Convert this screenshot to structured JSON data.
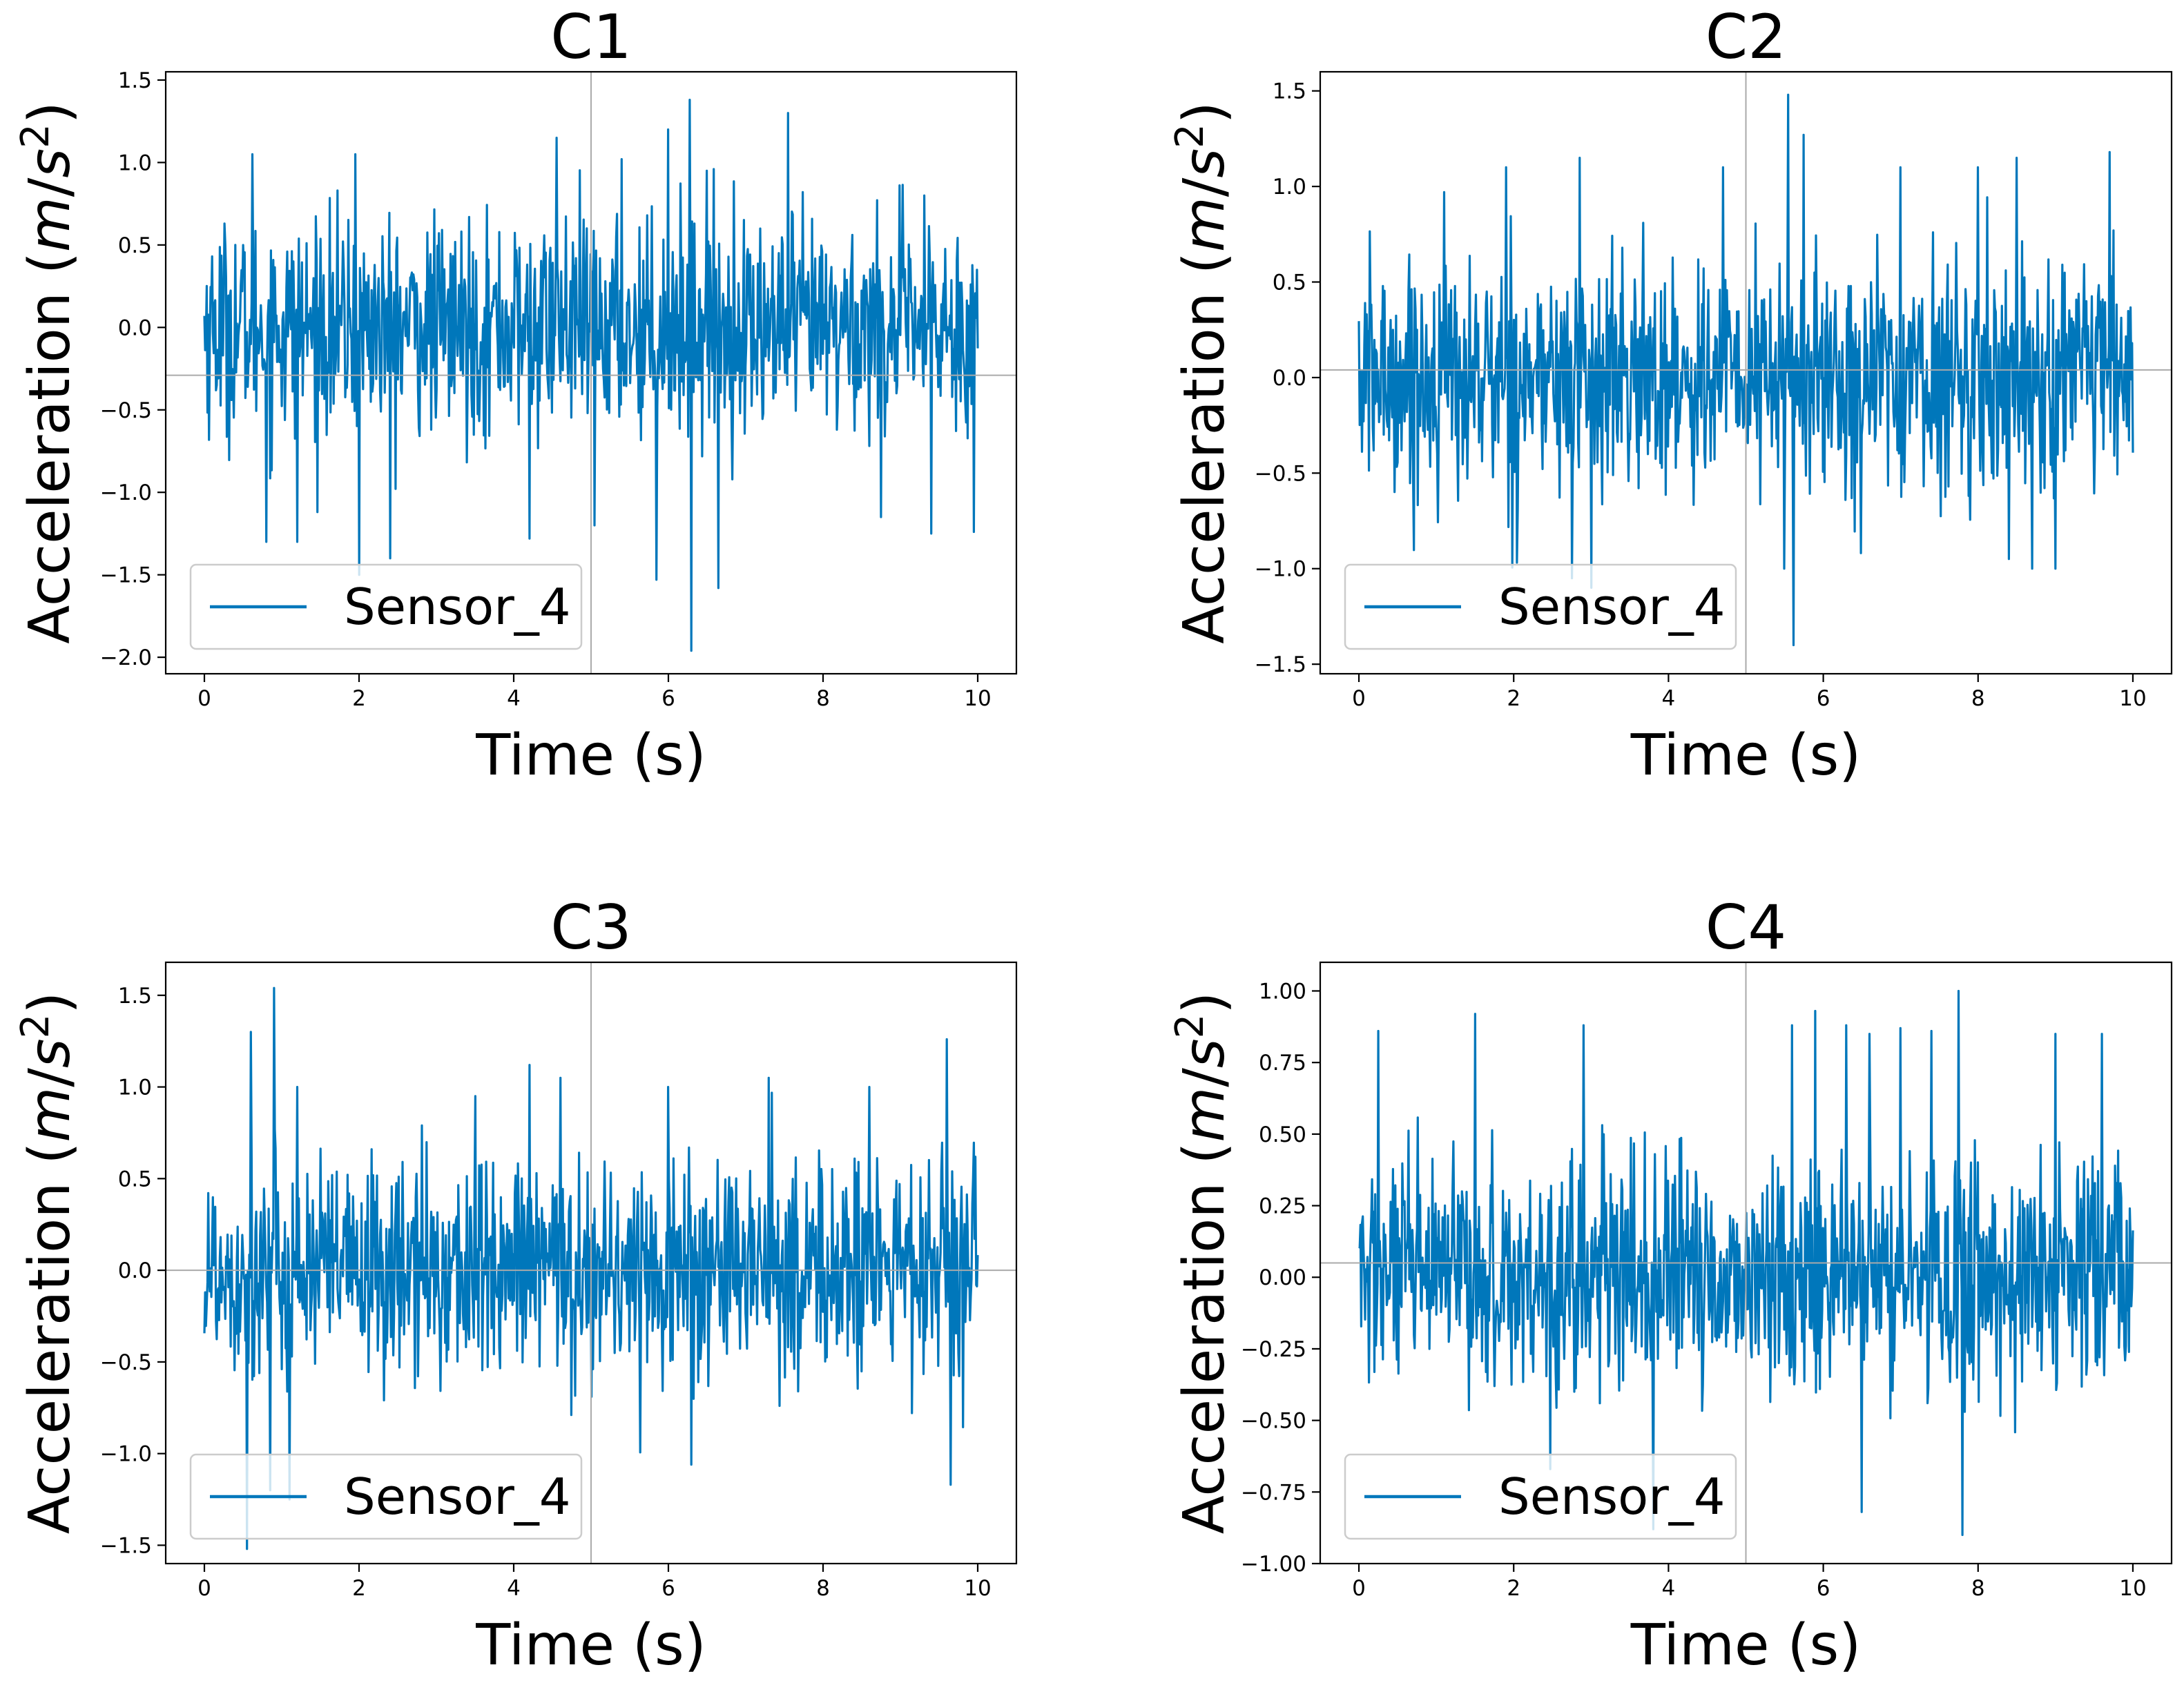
{
  "chart_data": [
    {
      "type": "line",
      "title": "C1",
      "xlabel": "Time (s)",
      "ylabel": {
        "prefix": "Acceleration (",
        "m": "m",
        "slash": "/",
        "s": "s",
        "exp": "2",
        "suffix": ")"
      },
      "xlim": [
        -0.5,
        10.5
      ],
      "ylim": [
        -2.1,
        1.55
      ],
      "xticks": [
        0,
        2,
        4,
        6,
        8,
        10
      ],
      "yticks": [
        -2.0,
        -1.5,
        -1.0,
        -0.5,
        0.0,
        0.5,
        1.0,
        1.5
      ],
      "yticklabels": [
        "−2.0",
        "−1.5",
        "−1.0",
        "−0.5",
        "0.0",
        "0.5",
        "1.0",
        "1.5"
      ],
      "crosshair": {
        "x": 5.0,
        "y": -0.29
      },
      "legend": {
        "entries": [
          "Sensor_4"
        ],
        "position": "lower-left"
      },
      "series": [
        {
          "name": "Sensor_4",
          "color": "#0077bb",
          "x_range": [
            0,
            10
          ],
          "n_points": 1000,
          "amplitude": 0.32,
          "max": 1.38,
          "min": -1.96,
          "spikes": [
            [
              0.62,
              1.05
            ],
            [
              0.8,
              -1.3
            ],
            [
              1.2,
              -1.3
            ],
            [
              1.95,
              1.05
            ],
            [
              2.0,
              -1.5
            ],
            [
              2.4,
              -1.4
            ],
            [
              4.2,
              -1.28
            ],
            [
              4.55,
              1.15
            ],
            [
              5.05,
              -1.2
            ],
            [
              5.4,
              1.02
            ],
            [
              5.85,
              -1.53
            ],
            [
              6.0,
              1.2
            ],
            [
              6.28,
              1.38
            ],
            [
              6.3,
              -1.96
            ],
            [
              6.5,
              0.95
            ],
            [
              6.65,
              -1.58
            ],
            [
              7.55,
              1.3
            ],
            [
              8.75,
              -1.15
            ],
            [
              9.4,
              -1.25
            ],
            [
              9.95,
              -1.24
            ]
          ]
        }
      ]
    },
    {
      "type": "line",
      "title": "C2",
      "xlabel": "Time (s)",
      "ylabel": {
        "prefix": "Acceleration (",
        "m": "m",
        "slash": "/",
        "s": "s",
        "exp": "2",
        "suffix": ")"
      },
      "xlim": [
        -0.5,
        10.5
      ],
      "ylim": [
        -1.55,
        1.6
      ],
      "xticks": [
        0,
        2,
        4,
        6,
        8,
        10
      ],
      "yticks": [
        -1.5,
        -1.0,
        -0.5,
        0.0,
        0.5,
        1.0,
        1.5
      ],
      "yticklabels": [
        "−1.5",
        "−1.0",
        "−0.5",
        "0.0",
        "0.5",
        "1.0",
        "1.5"
      ],
      "crosshair": {
        "x": 5.0,
        "y": 0.04
      },
      "legend": {
        "entries": [
          "Sensor_4"
        ],
        "position": "lower-left"
      },
      "series": [
        {
          "name": "Sensor_4",
          "color": "#0077bb",
          "x_range": [
            0,
            10
          ],
          "n_points": 1000,
          "amplitude": 0.3,
          "max": 1.48,
          "min": -1.4,
          "spikes": [
            [
              1.1,
              0.97
            ],
            [
              1.9,
              1.1
            ],
            [
              2.75,
              -1.05
            ],
            [
              2.85,
              1.15
            ],
            [
              3.0,
              -1.1
            ],
            [
              4.7,
              1.1
            ],
            [
              5.5,
              -1.0
            ],
            [
              5.55,
              1.48
            ],
            [
              5.62,
              -1.4
            ],
            [
              5.75,
              1.27
            ],
            [
              7.0,
              1.1
            ],
            [
              8.0,
              1.1
            ],
            [
              8.5,
              1.15
            ],
            [
              8.7,
              -1.0
            ],
            [
              9.0,
              -1.0
            ],
            [
              9.7,
              1.18
            ]
          ]
        }
      ]
    },
    {
      "type": "line",
      "title": "C3",
      "xlabel": "Time (s)",
      "ylabel": {
        "prefix": "Acceleration (",
        "m": "m",
        "slash": "/",
        "s": "s",
        "exp": "2",
        "suffix": ")"
      },
      "xlim": [
        -0.5,
        10.5
      ],
      "ylim": [
        -1.6,
        1.68
      ],
      "xticks": [
        0,
        2,
        4,
        6,
        8,
        10
      ],
      "yticks": [
        -1.5,
        -1.0,
        -0.5,
        0.0,
        0.5,
        1.0,
        1.5
      ],
      "yticklabels": [
        "−1.5",
        "−1.0",
        "−0.5",
        "0.0",
        "0.5",
        "1.0",
        "1.5"
      ],
      "crosshair": {
        "x": 5.0,
        "y": 0.0
      },
      "legend": {
        "entries": [
          "Sensor_4"
        ],
        "position": "lower-left"
      },
      "series": [
        {
          "name": "Sensor_4",
          "color": "#0077bb",
          "x_range": [
            0,
            10
          ],
          "n_points": 1000,
          "amplitude": 0.3,
          "max": 1.54,
          "min": -1.52,
          "spikes": [
            [
              0.55,
              -1.52
            ],
            [
              0.6,
              1.3
            ],
            [
              0.85,
              -1.2
            ],
            [
              0.9,
              1.54
            ],
            [
              1.1,
              -1.25
            ],
            [
              1.2,
              1.0
            ],
            [
              3.5,
              0.95
            ],
            [
              4.2,
              1.12
            ],
            [
              4.6,
              1.05
            ],
            [
              6.0,
              1.0
            ],
            [
              6.3,
              -1.06
            ],
            [
              7.3,
              1.05
            ],
            [
              8.6,
              1.0
            ],
            [
              9.6,
              1.26
            ],
            [
              9.65,
              -1.17
            ]
          ]
        }
      ]
    },
    {
      "type": "line",
      "title": "C4",
      "xlabel": "Time (s)",
      "ylabel": {
        "prefix": "Acceleration (",
        "m": "m",
        "slash": "/",
        "s": "s",
        "exp": "2",
        "suffix": ")"
      },
      "xlim": [
        -0.5,
        10.5
      ],
      "ylim": [
        -1.0,
        1.1
      ],
      "xticks": [
        0,
        2,
        4,
        6,
        8,
        10
      ],
      "yticks": [
        -1.0,
        -0.75,
        -0.5,
        -0.25,
        0.0,
        0.25,
        0.5,
        0.75,
        1.0
      ],
      "yticklabels": [
        "−1.00",
        "−0.75",
        "−0.50",
        "−0.25",
        "0.00",
        "0.25",
        "0.50",
        "0.75",
        "1.00"
      ],
      "crosshair": {
        "x": 5.0,
        "y": 0.05
      },
      "legend": {
        "entries": [
          "Sensor_4"
        ],
        "position": "lower-left"
      },
      "series": [
        {
          "name": "Sensor_4",
          "color": "#0077bb",
          "x_range": [
            0,
            10
          ],
          "n_points": 1000,
          "amplitude": 0.2,
          "max": 1.0,
          "min": -0.9,
          "spikes": [
            [
              0.25,
              0.86
            ],
            [
              1.5,
              0.92
            ],
            [
              2.9,
              0.88
            ],
            [
              3.8,
              0.95
            ],
            [
              3.8,
              -0.88
            ],
            [
              5.6,
              0.88
            ],
            [
              5.9,
              0.93
            ],
            [
              6.3,
              0.88
            ],
            [
              6.5,
              -0.82
            ],
            [
              6.6,
              0.85
            ],
            [
              7.0,
              0.87
            ],
            [
              7.4,
              0.86
            ],
            [
              7.75,
              1.0
            ],
            [
              7.8,
              -0.9
            ],
            [
              9.0,
              0.85
            ],
            [
              9.6,
              0.85
            ]
          ]
        }
      ]
    }
  ]
}
